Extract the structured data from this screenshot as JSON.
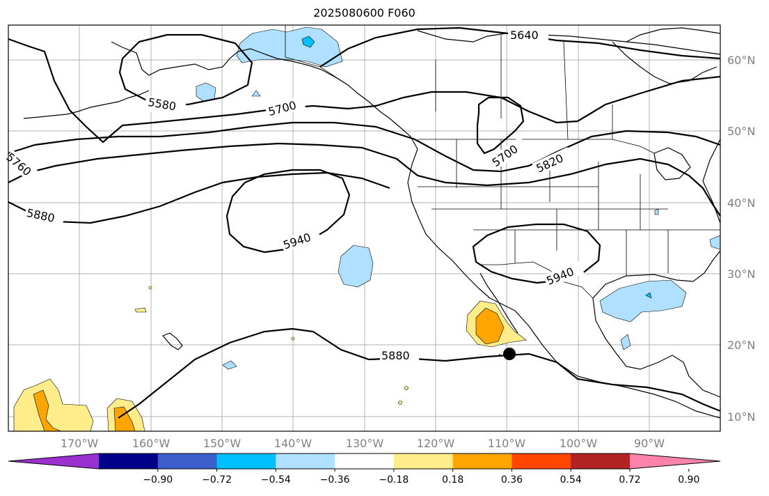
{
  "title": "2025080600 F060",
  "lat_labels": [
    "60°N",
    "50°N",
    "40°N",
    "30°N",
    "20°N",
    "10°N"
  ],
  "lon_labels": [
    "170°W",
    "160°W",
    "150°W",
    "140°W",
    "130°W",
    "120°W",
    "110°W",
    "100°W",
    "90°W"
  ],
  "contour_labels": [
    "5640",
    "5580",
    "5700",
    "5700",
    "5820",
    "5760",
    "5880",
    "5940",
    "5940",
    "5880"
  ],
  "colorbar": {
    "ticks": [
      "−0.90",
      "−0.72",
      "−0.54",
      "−0.36",
      "−0.18",
      "0.18",
      "0.36",
      "0.54",
      "0.72",
      "0.90"
    ],
    "colors": [
      "#9b30d0",
      "#00008b",
      "#3a5fcd",
      "#00bfff",
      "#b0e0ff",
      "#ffffff",
      "#ffec8b",
      "#ffa500",
      "#ff4500",
      "#b22222",
      "#ff82ab"
    ]
  },
  "marker": {
    "name": "storm-position",
    "lon": -109.3,
    "lat": 18.6
  }
}
